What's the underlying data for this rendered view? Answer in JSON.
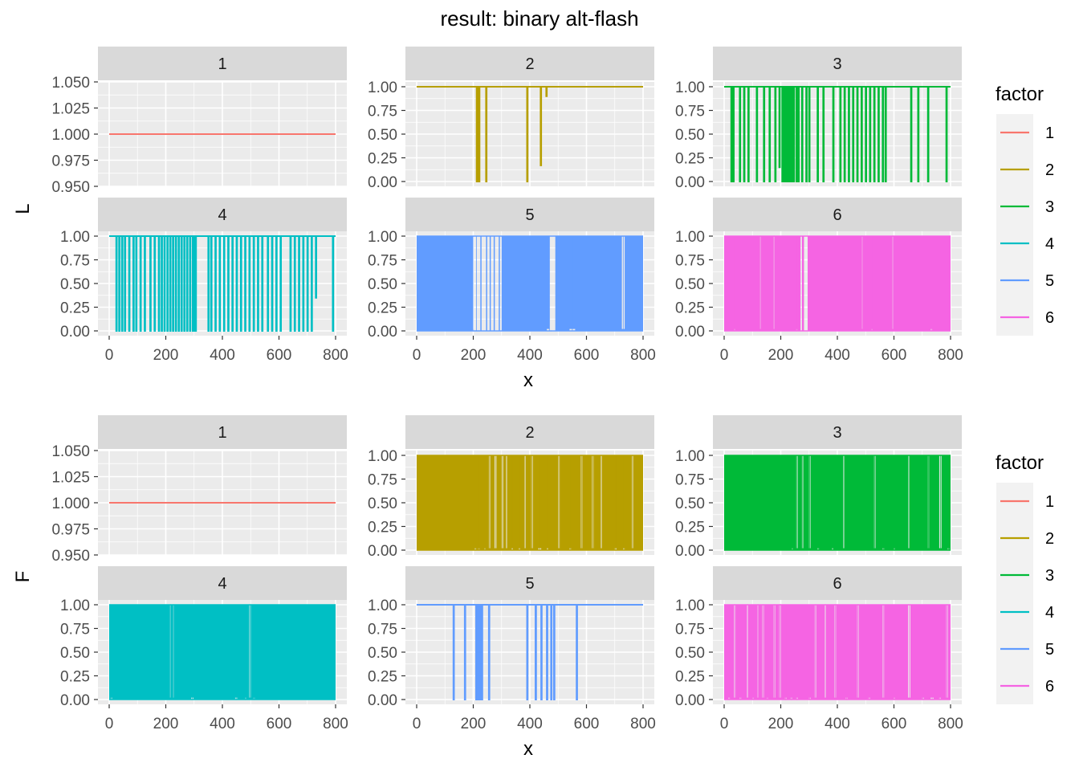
{
  "title": "result: binary alt-flash",
  "x_label": "x",
  "legend_title": "factor",
  "colors": {
    "1": "#F8766D",
    "2": "#B79F00",
    "3": "#00BA38",
    "4": "#00BFC4",
    "5": "#619CFF",
    "6": "#F564E3"
  },
  "chart_data": [
    {
      "type": "line",
      "facet": "top",
      "ylabel": "L",
      "xlabel": "x",
      "xlim": [
        0,
        800
      ],
      "x_ticks": [
        "0",
        "200",
        "400",
        "600",
        "800"
      ],
      "legend": {
        "title": "factor",
        "position": "right",
        "entries": [
          "1",
          "2",
          "3",
          "4",
          "5",
          "6"
        ]
      },
      "grid": true,
      "panels": [
        {
          "factor": "1",
          "ylim": [
            0.95,
            1.05
          ],
          "y_ticks": [
            "0.950",
            "0.975",
            "1.000",
            "1.025",
            "1.050"
          ],
          "pattern": "flat",
          "values": [
            [
              0,
              1.0
            ],
            [
              800,
              1.0
            ]
          ]
        },
        {
          "factor": "2",
          "ylim": [
            0,
            1
          ],
          "y_ticks": [
            "0.00",
            "0.25",
            "0.50",
            "0.75",
            "1.00"
          ],
          "pattern": "sparse",
          "baseline": 1,
          "drops": [
            [
              212,
              0
            ],
            [
              216,
              0
            ],
            [
              220,
              0
            ],
            [
              245,
              0
            ],
            [
              390,
              0
            ],
            [
              438,
              0.17
            ],
            [
              458,
              0.9
            ]
          ]
        },
        {
          "factor": "3",
          "ylim": [
            0,
            1
          ],
          "y_ticks": [
            "0.00",
            "0.25",
            "0.50",
            "0.75",
            "1.00"
          ],
          "pattern": "sparse",
          "baseline": 1,
          "drops": [
            [
              25,
              0
            ],
            [
              32,
              0
            ],
            [
              55,
              0
            ],
            [
              70,
              0
            ],
            [
              85,
              0
            ],
            [
              115,
              0
            ],
            [
              140,
              0
            ],
            [
              160,
              0
            ],
            [
              180,
              0
            ],
            [
              195,
              0.15
            ],
            [
              205,
              0
            ],
            [
              210,
              0
            ],
            [
              215,
              0
            ],
            [
              220,
              0
            ],
            [
              225,
              0
            ],
            [
              230,
              0
            ],
            [
              235,
              0
            ],
            [
              240,
              0
            ],
            [
              245,
              0
            ],
            [
              255,
              0
            ],
            [
              262,
              0
            ],
            [
              275,
              0
            ],
            [
              290,
              0
            ],
            [
              300,
              0
            ],
            [
              330,
              0
            ],
            [
              350,
              0
            ],
            [
              385,
              0
            ],
            [
              410,
              0
            ],
            [
              425,
              0
            ],
            [
              440,
              0
            ],
            [
              455,
              0
            ],
            [
              470,
              0
            ],
            [
              485,
              0
            ],
            [
              500,
              0
            ],
            [
              515,
              0
            ],
            [
              530,
              0
            ],
            [
              545,
              0
            ],
            [
              560,
              0
            ],
            [
              570,
              0
            ],
            [
              660,
              0
            ],
            [
              685,
              0
            ],
            [
              720,
              0
            ],
            [
              785,
              0
            ]
          ]
        },
        {
          "factor": "4",
          "ylim": [
            0,
            1
          ],
          "y_ticks": [
            "0.00",
            "0.25",
            "0.50",
            "0.75",
            "1.00"
          ],
          "pattern": "sparse",
          "baseline": 1,
          "drops": [
            [
              25,
              0
            ],
            [
              35,
              0
            ],
            [
              45,
              0
            ],
            [
              55,
              0
            ],
            [
              70,
              0
            ],
            [
              85,
              0
            ],
            [
              95,
              0
            ],
            [
              110,
              0
            ],
            [
              125,
              0
            ],
            [
              145,
              0
            ],
            [
              160,
              0
            ],
            [
              175,
              0
            ],
            [
              185,
              0
            ],
            [
              195,
              0
            ],
            [
              205,
              0
            ],
            [
              215,
              0
            ],
            [
              225,
              0
            ],
            [
              235,
              0
            ],
            [
              245,
              0
            ],
            [
              255,
              0
            ],
            [
              265,
              0
            ],
            [
              275,
              0
            ],
            [
              285,
              0
            ],
            [
              295,
              0
            ],
            [
              300,
              0
            ],
            [
              305,
              0
            ],
            [
              350,
              0
            ],
            [
              360,
              0
            ],
            [
              375,
              0
            ],
            [
              390,
              0
            ],
            [
              405,
              0
            ],
            [
              420,
              0
            ],
            [
              435,
              0
            ],
            [
              450,
              0
            ],
            [
              465,
              0
            ],
            [
              480,
              0
            ],
            [
              495,
              0
            ],
            [
              510,
              0
            ],
            [
              525,
              0
            ],
            [
              540,
              0
            ],
            [
              560,
              0
            ],
            [
              575,
              0
            ],
            [
              590,
              0
            ],
            [
              605,
              0
            ],
            [
              640,
              0
            ],
            [
              655,
              0
            ],
            [
              670,
              0
            ],
            [
              685,
              0
            ],
            [
              700,
              0
            ],
            [
              715,
              0
            ],
            [
              730,
              0.35
            ],
            [
              790,
              0
            ]
          ]
        },
        {
          "factor": "5",
          "ylim": [
            0,
            1
          ],
          "y_ticks": [
            "0.00",
            "0.25",
            "0.50",
            "0.75",
            "1.00"
          ],
          "pattern": "dense",
          "blocks": [
            [
              0,
              200
            ],
            [
              225,
              228
            ],
            [
              245,
              248
            ],
            [
              258,
              261
            ],
            [
              272,
              275
            ],
            [
              290,
              293
            ],
            [
              300,
              470
            ],
            [
              490,
              800
            ]
          ],
          "gaps": [
            [
              200,
              222
            ],
            [
              460,
              478
            ],
            [
              540,
              560
            ],
            [
              725,
              735
            ]
          ]
        },
        {
          "factor": "6",
          "ylim": [
            0,
            1
          ],
          "y_ticks": [
            "0.00",
            "0.25",
            "0.50",
            "0.75",
            "1.00"
          ],
          "pattern": "dense",
          "blocks": [
            [
              0,
              270
            ],
            [
              275,
              282
            ],
            [
              295,
              800
            ]
          ],
          "gaps": [
            [
              35,
              38
            ],
            [
              125,
              128
            ],
            [
              175,
              178
            ],
            [
              255,
              258
            ],
            [
              485,
              488
            ],
            [
              520,
              523
            ],
            [
              595,
              598
            ],
            [
              730,
              735
            ]
          ]
        }
      ]
    },
    {
      "type": "line",
      "facet": "bottom",
      "ylabel": "F",
      "xlabel": "x",
      "xlim": [
        0,
        800
      ],
      "x_ticks": [
        "0",
        "200",
        "400",
        "600",
        "800"
      ],
      "legend": {
        "title": "factor",
        "position": "right",
        "entries": [
          "1",
          "2",
          "3",
          "4",
          "5",
          "6"
        ]
      },
      "grid": true,
      "panels": [
        {
          "factor": "1",
          "ylim": [
            0.95,
            1.05
          ],
          "y_ticks": [
            "0.950",
            "0.975",
            "1.000",
            "1.025",
            "1.050"
          ],
          "pattern": "flat",
          "values": [
            [
              0,
              1.0
            ],
            [
              800,
              1.0
            ]
          ]
        },
        {
          "factor": "2",
          "ylim": [
            0,
            1
          ],
          "y_ticks": [
            "0.00",
            "0.25",
            "0.50",
            "0.75",
            "1.00"
          ],
          "pattern": "dense",
          "blocks": [
            [
              0,
              800
            ]
          ],
          "gaps": [
            [
              205,
              210
            ],
            [
              218,
              222
            ],
            [
              240,
              244
            ],
            [
              255,
              260
            ],
            [
              275,
              282
            ],
            [
              300,
              306
            ],
            [
              315,
              320
            ],
            [
              335,
              340
            ],
            [
              360,
              365
            ],
            [
              380,
              385
            ],
            [
              405,
              410
            ],
            [
              430,
              440
            ],
            [
              460,
              465
            ],
            [
              500,
              505
            ],
            [
              540,
              545
            ],
            [
              580,
              585
            ],
            [
              620,
              625
            ],
            [
              650,
              655
            ],
            [
              700,
              706
            ],
            [
              730,
              735
            ],
            [
              760,
              765
            ]
          ]
        },
        {
          "factor": "3",
          "ylim": [
            0,
            1
          ],
          "y_ticks": [
            "0.00",
            "0.25",
            "0.50",
            "0.75",
            "1.00"
          ],
          "pattern": "dense",
          "blocks": [
            [
              0,
              800
            ]
          ],
          "gaps": [
            [
              240,
              244
            ],
            [
              255,
              260
            ],
            [
              275,
              280
            ],
            [
              300,
              305
            ],
            [
              330,
              335
            ],
            [
              380,
              385
            ],
            [
              420,
              425
            ],
            [
              530,
              535
            ],
            [
              560,
              565
            ],
            [
              600,
              604
            ],
            [
              650,
              655
            ],
            [
              720,
              724
            ],
            [
              760,
              768
            ],
            [
              790,
              795
            ]
          ]
        },
        {
          "factor": "4",
          "ylim": [
            0,
            1
          ],
          "y_ticks": [
            "0.00",
            "0.25",
            "0.50",
            "0.75",
            "1.00"
          ],
          "pattern": "dense",
          "blocks": [
            [
              0,
              800
            ]
          ],
          "gaps": [
            [
              5,
              10
            ],
            [
              215,
              218
            ],
            [
              225,
              228
            ],
            [
              290,
              298
            ],
            [
              445,
              452
            ],
            [
              480,
              484
            ],
            [
              495,
              500
            ],
            [
              510,
              514
            ]
          ]
        },
        {
          "factor": "5",
          "ylim": [
            0,
            1
          ],
          "y_ticks": [
            "0.00",
            "0.25",
            "0.50",
            "0.75",
            "1.00"
          ],
          "pattern": "sparse",
          "baseline": 1,
          "drops": [
            [
              130,
              0
            ],
            [
              170,
              0
            ],
            [
              210,
              0
            ],
            [
              215,
              0
            ],
            [
              220,
              0
            ],
            [
              225,
              0
            ],
            [
              230,
              0
            ],
            [
              255,
              0
            ],
            [
              390,
              0
            ],
            [
              420,
              0
            ],
            [
              440,
              0
            ],
            [
              460,
              0
            ],
            [
              475,
              0
            ],
            [
              485,
              0
            ],
            [
              565,
              0
            ]
          ]
        },
        {
          "factor": "6",
          "ylim": [
            0,
            1
          ],
          "y_ticks": [
            "0.00",
            "0.25",
            "0.50",
            "0.75",
            "1.00"
          ],
          "pattern": "dense",
          "blocks": [
            [
              0,
              800
            ]
          ],
          "gaps": [
            [
              15,
              20
            ],
            [
              35,
              40
            ],
            [
              55,
              60
            ],
            [
              80,
              85
            ],
            [
              100,
              104
            ],
            [
              118,
              122
            ],
            [
              135,
              140
            ],
            [
              150,
              154
            ],
            [
              175,
              180
            ],
            [
              195,
              200
            ],
            [
              215,
              220
            ],
            [
              235,
              240
            ],
            [
              255,
              260
            ],
            [
              300,
              305
            ],
            [
              320,
              325
            ],
            [
              355,
              360
            ],
            [
              390,
              395
            ],
            [
              430,
              435
            ],
            [
              470,
              475
            ],
            [
              510,
              515
            ],
            [
              560,
              565
            ],
            [
              600,
              604
            ],
            [
              650,
              658
            ],
            [
              700,
              705
            ],
            [
              730,
              740
            ],
            [
              760,
              765
            ],
            [
              785,
              790
            ]
          ]
        }
      ]
    }
  ]
}
